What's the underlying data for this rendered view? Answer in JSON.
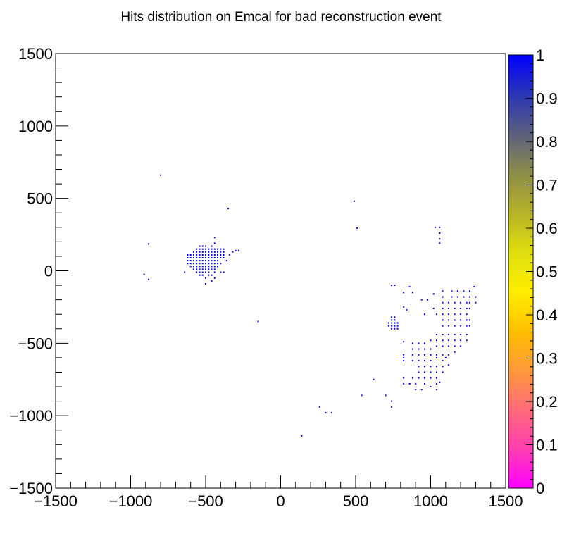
{
  "chart_data": {
    "type": "scatter",
    "title": "Hits distribution on Emcal for bad reconstruction event",
    "xlabel": "",
    "ylabel": "",
    "xlim": [
      -1500,
      1500
    ],
    "ylim": [
      -1500,
      1500
    ],
    "x_ticks": [
      "−1500",
      "−1000",
      "−500",
      "0",
      "500",
      "1000",
      "1500"
    ],
    "y_ticks": [
      "1500",
      "1000",
      "500",
      "0",
      "−500",
      "−1000",
      "−1500"
    ],
    "colorbar": {
      "zlim": [
        0,
        1
      ],
      "ticks": [
        "0",
        "0.1",
        "0.2",
        "0.3",
        "0.4",
        "0.5",
        "0.6",
        "0.7",
        "0.8",
        "0.9",
        "1"
      ],
      "palette": [
        "#ff00ff",
        "#ff3fb0",
        "#ff6b7a",
        "#ff9a3a",
        "#ffc000",
        "#ffee00",
        "#dede10",
        "#b6b22a",
        "#8c8c4a",
        "#5a5f7e",
        "#2a35b5",
        "#0000ff"
      ]
    },
    "points_color": "#0000cc",
    "points": [
      [
        -800,
        660
      ],
      [
        -350,
        430
      ],
      [
        -880,
        185
      ],
      [
        -910,
        -25
      ],
      [
        -880,
        -60
      ],
      [
        490,
        480
      ],
      [
        510,
        295
      ],
      [
        -150,
        -350
      ],
      [
        1030,
        300
      ],
      [
        1060,
        300
      ],
      [
        1060,
        260
      ],
      [
        1060,
        220
      ],
      [
        1060,
        190
      ],
      [
        -620,
        110
      ],
      [
        -620,
        90
      ],
      [
        -620,
        70
      ],
      [
        -620,
        50
      ],
      [
        -600,
        110
      ],
      [
        -600,
        90
      ],
      [
        -600,
        70
      ],
      [
        -600,
        50
      ],
      [
        -600,
        30
      ],
      [
        -580,
        130
      ],
      [
        -580,
        110
      ],
      [
        -580,
        90
      ],
      [
        -580,
        70
      ],
      [
        -580,
        50
      ],
      [
        -580,
        30
      ],
      [
        -580,
        10
      ],
      [
        -560,
        150
      ],
      [
        -560,
        130
      ],
      [
        -560,
        110
      ],
      [
        -560,
        90
      ],
      [
        -560,
        70
      ],
      [
        -560,
        50
      ],
      [
        -560,
        30
      ],
      [
        -560,
        10
      ],
      [
        -560,
        -10
      ],
      [
        -540,
        170
      ],
      [
        -540,
        150
      ],
      [
        -540,
        130
      ],
      [
        -540,
        110
      ],
      [
        -540,
        90
      ],
      [
        -540,
        70
      ],
      [
        -540,
        50
      ],
      [
        -540,
        30
      ],
      [
        -540,
        10
      ],
      [
        -540,
        -10
      ],
      [
        -540,
        -30
      ],
      [
        -520,
        170
      ],
      [
        -520,
        150
      ],
      [
        -520,
        130
      ],
      [
        -520,
        110
      ],
      [
        -520,
        90
      ],
      [
        -520,
        70
      ],
      [
        -520,
        50
      ],
      [
        -520,
        30
      ],
      [
        -520,
        10
      ],
      [
        -520,
        -10
      ],
      [
        -520,
        -30
      ],
      [
        -500,
        170
      ],
      [
        -500,
        150
      ],
      [
        -500,
        130
      ],
      [
        -500,
        110
      ],
      [
        -500,
        90
      ],
      [
        -500,
        70
      ],
      [
        -500,
        50
      ],
      [
        -500,
        30
      ],
      [
        -500,
        10
      ],
      [
        -500,
        -10
      ],
      [
        -500,
        -50
      ],
      [
        -500,
        -90
      ],
      [
        -480,
        150
      ],
      [
        -480,
        130
      ],
      [
        -480,
        110
      ],
      [
        -480,
        90
      ],
      [
        -480,
        70
      ],
      [
        -480,
        50
      ],
      [
        -480,
        30
      ],
      [
        -480,
        10
      ],
      [
        -480,
        -10
      ],
      [
        -480,
        -30
      ],
      [
        -460,
        170
      ],
      [
        -460,
        150
      ],
      [
        -460,
        130
      ],
      [
        -460,
        110
      ],
      [
        -460,
        90
      ],
      [
        -460,
        70
      ],
      [
        -460,
        50
      ],
      [
        -460,
        30
      ],
      [
        -460,
        10
      ],
      [
        -460,
        -30
      ],
      [
        -460,
        -70
      ],
      [
        -440,
        230
      ],
      [
        -440,
        190
      ],
      [
        -440,
        150
      ],
      [
        -440,
        130
      ],
      [
        -440,
        110
      ],
      [
        -440,
        90
      ],
      [
        -440,
        70
      ],
      [
        -440,
        50
      ],
      [
        -440,
        30
      ],
      [
        -440,
        10
      ],
      [
        -440,
        -10
      ],
      [
        -440,
        -50
      ],
      [
        -420,
        150
      ],
      [
        -420,
        130
      ],
      [
        -420,
        110
      ],
      [
        -420,
        90
      ],
      [
        -420,
        70
      ],
      [
        -420,
        50
      ],
      [
        -420,
        30
      ],
      [
        -400,
        150
      ],
      [
        -400,
        130
      ],
      [
        -400,
        110
      ],
      [
        -400,
        90
      ],
      [
        -400,
        50
      ],
      [
        -400,
        -10
      ],
      [
        -380,
        150
      ],
      [
        -380,
        130
      ],
      [
        -380,
        110
      ],
      [
        -380,
        90
      ],
      [
        -380,
        -10
      ],
      [
        -360,
        70
      ],
      [
        -340,
        110
      ],
      [
        -320,
        130
      ],
      [
        -300,
        140
      ],
      [
        -280,
        140
      ],
      [
        -640,
        -10
      ],
      [
        740,
        -100
      ],
      [
        760,
        -100
      ],
      [
        860,
        -110
      ],
      [
        820,
        -150
      ],
      [
        880,
        -150
      ],
      [
        940,
        -200
      ],
      [
        980,
        -200
      ],
      [
        1020,
        -160
      ],
      [
        1080,
        -140
      ],
      [
        1140,
        -140
      ],
      [
        1180,
        -140
      ],
      [
        1220,
        -140
      ],
      [
        1260,
        -140
      ],
      [
        1290,
        -110
      ],
      [
        1080,
        -180
      ],
      [
        1140,
        -180
      ],
      [
        1180,
        -180
      ],
      [
        1220,
        -180
      ],
      [
        1260,
        -180
      ],
      [
        1300,
        -180
      ],
      [
        1080,
        -220
      ],
      [
        1120,
        -220
      ],
      [
        1160,
        -220
      ],
      [
        1200,
        -220
      ],
      [
        1240,
        -220
      ],
      [
        1260,
        -220
      ],
      [
        1300,
        -220
      ],
      [
        1020,
        -260
      ],
      [
        1080,
        -260
      ],
      [
        1120,
        -260
      ],
      [
        1160,
        -260
      ],
      [
        1200,
        -260
      ],
      [
        1240,
        -260
      ],
      [
        1260,
        -260
      ],
      [
        820,
        -250
      ],
      [
        840,
        -270
      ],
      [
        960,
        -300
      ],
      [
        1040,
        -300
      ],
      [
        1080,
        -300
      ],
      [
        1120,
        -300
      ],
      [
        1160,
        -300
      ],
      [
        1200,
        -300
      ],
      [
        1240,
        -300
      ],
      [
        1080,
        -340
      ],
      [
        1120,
        -340
      ],
      [
        1160,
        -340
      ],
      [
        1200,
        -340
      ],
      [
        1240,
        -340
      ],
      [
        1260,
        -340
      ],
      [
        1080,
        -380
      ],
      [
        1120,
        -380
      ],
      [
        1160,
        -380
      ],
      [
        1200,
        -380
      ],
      [
        1240,
        -380
      ],
      [
        1260,
        -380
      ],
      [
        740,
        -320
      ],
      [
        740,
        -340
      ],
      [
        740,
        -360
      ],
      [
        740,
        -380
      ],
      [
        740,
        -400
      ],
      [
        760,
        -320
      ],
      [
        760,
        -340
      ],
      [
        760,
        -360
      ],
      [
        760,
        -380
      ],
      [
        760,
        -400
      ],
      [
        780,
        -360
      ],
      [
        780,
        -380
      ],
      [
        780,
        -400
      ],
      [
        720,
        -360
      ],
      [
        720,
        -380
      ],
      [
        1040,
        -440
      ],
      [
        1080,
        -440
      ],
      [
        1120,
        -440
      ],
      [
        1160,
        -440
      ],
      [
        1200,
        -440
      ],
      [
        1240,
        -440
      ],
      [
        820,
        -490
      ],
      [
        880,
        -500
      ],
      [
        920,
        -500
      ],
      [
        960,
        -500
      ],
      [
        1000,
        -480
      ],
      [
        1040,
        -480
      ],
      [
        1080,
        -480
      ],
      [
        1120,
        -480
      ],
      [
        1160,
        -480
      ],
      [
        1200,
        -480
      ],
      [
        1240,
        -480
      ],
      [
        880,
        -540
      ],
      [
        920,
        -540
      ],
      [
        960,
        -540
      ],
      [
        1000,
        -540
      ],
      [
        1040,
        -520
      ],
      [
        1080,
        -520
      ],
      [
        1120,
        -520
      ],
      [
        1160,
        -520
      ],
      [
        1200,
        -520
      ],
      [
        820,
        -580
      ],
      [
        820,
        -600
      ],
      [
        820,
        -620
      ],
      [
        880,
        -580
      ],
      [
        920,
        -580
      ],
      [
        960,
        -580
      ],
      [
        1000,
        -580
      ],
      [
        1040,
        -580
      ],
      [
        1080,
        -580
      ],
      [
        1120,
        -580
      ],
      [
        1160,
        -560
      ],
      [
        880,
        -620
      ],
      [
        920,
        -620
      ],
      [
        960,
        -620
      ],
      [
        1000,
        -620
      ],
      [
        1040,
        -600
      ],
      [
        1080,
        -620
      ],
      [
        1100,
        -600
      ],
      [
        920,
        -660
      ],
      [
        960,
        -660
      ],
      [
        1000,
        -660
      ],
      [
        1040,
        -660
      ],
      [
        1080,
        -660
      ],
      [
        1120,
        -650
      ],
      [
        920,
        -700
      ],
      [
        960,
        -700
      ],
      [
        1000,
        -700
      ],
      [
        1040,
        -700
      ],
      [
        1080,
        -700
      ],
      [
        820,
        -740
      ],
      [
        880,
        -740
      ],
      [
        920,
        -740
      ],
      [
        960,
        -740
      ],
      [
        1000,
        -740
      ],
      [
        1040,
        -740
      ],
      [
        820,
        -780
      ],
      [
        860,
        -780
      ],
      [
        900,
        -780
      ],
      [
        960,
        -780
      ],
      [
        1040,
        -780
      ],
      [
        1060,
        -770
      ],
      [
        900,
        -820
      ],
      [
        940,
        -820
      ],
      [
        1000,
        -800
      ],
      [
        1040,
        -820
      ],
      [
        620,
        -750
      ],
      [
        540,
        -860
      ],
      [
        700,
        -860
      ],
      [
        740,
        -900
      ],
      [
        740,
        -940
      ],
      [
        260,
        -940
      ],
      [
        300,
        -980
      ],
      [
        340,
        -980
      ],
      [
        140,
        -1140
      ]
    ]
  }
}
